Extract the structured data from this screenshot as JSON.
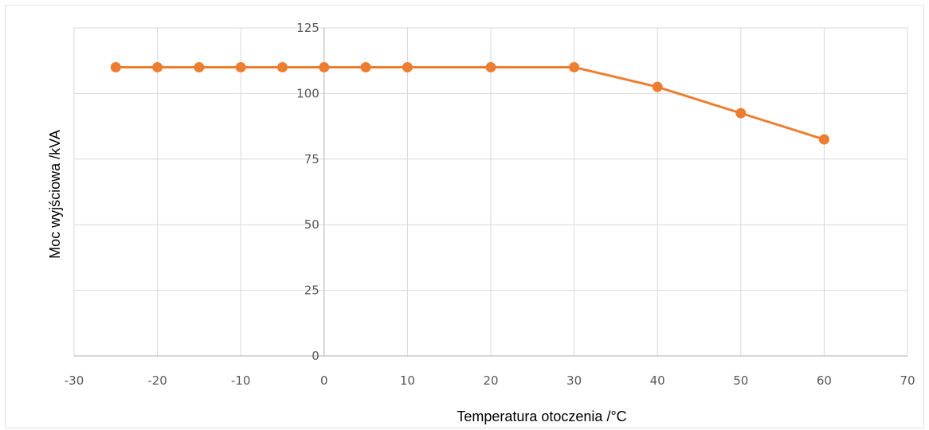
{
  "chart_data": {
    "type": "line",
    "title": "",
    "xlabel": "Temperatura otoczenia /°C",
    "ylabel": "Moc wyjściowa /kVA",
    "xlim": [
      -30,
      70
    ],
    "ylim": [
      0,
      125
    ],
    "x_ticks": [
      -30,
      -20,
      -10,
      0,
      10,
      20,
      30,
      40,
      50,
      60,
      70
    ],
    "y_ticks": [
      0,
      25,
      50,
      75,
      100,
      125
    ],
    "grid": true,
    "line_color": "#ED7D31",
    "series": [
      {
        "x": [
          -25,
          -20,
          -15,
          -10,
          -5,
          0,
          5,
          10,
          20,
          30,
          40,
          50,
          60
        ],
        "y": [
          110,
          110,
          110,
          110,
          110,
          110,
          110,
          110,
          110,
          110,
          102.5,
          92.5,
          82.5
        ]
      }
    ]
  }
}
